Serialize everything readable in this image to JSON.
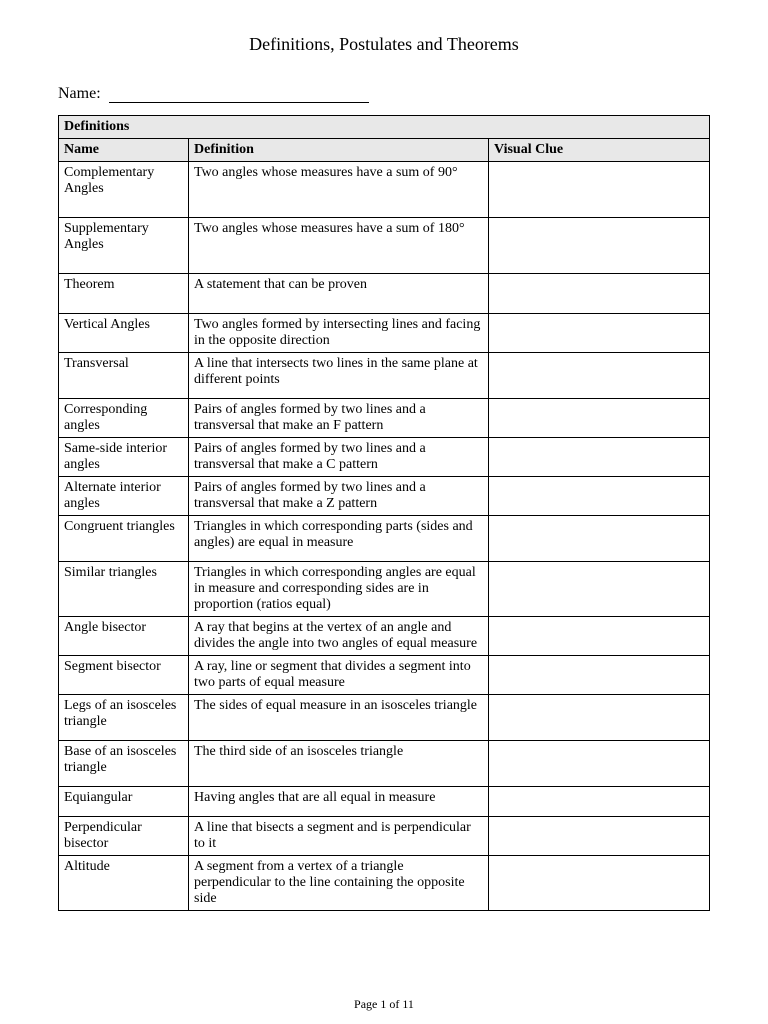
{
  "title": "Definitions, Postulates and Theorems",
  "name_label": "Name:",
  "section_header": "Definitions",
  "columns": {
    "name": "Name",
    "definition": "Definition",
    "visual": "Visual Clue"
  },
  "rows": [
    {
      "name": "Complementary Angles",
      "def": "Two angles whose measures have a sum of 90°",
      "h": "tall"
    },
    {
      "name": "Supplementary Angles",
      "def": "Two angles whose measures have a sum of 180°",
      "h": "tall"
    },
    {
      "name": "Theorem",
      "def": "A statement that can be proven",
      "h": "tall"
    },
    {
      "name": "Vertical Angles",
      "def": "Two angles formed by intersecting lines and facing in the opposite direction",
      "h": ""
    },
    {
      "name": "Transversal",
      "def": "A line that intersects two lines in the same plane at different points",
      "h": "med"
    },
    {
      "name": "Corresponding angles",
      "def": "Pairs of angles formed by two lines and a transversal that make an F pattern",
      "h": ""
    },
    {
      "name": "Same-side interior angles",
      "def": "Pairs of angles formed by two lines and a transversal that make a C pattern",
      "h": ""
    },
    {
      "name": "Alternate interior angles",
      "def": "Pairs of angles formed by two lines and a transversal that make a Z pattern",
      "h": ""
    },
    {
      "name": "Congruent triangles",
      "def": "Triangles in which corresponding parts (sides and angles) are equal in measure",
      "h": "med"
    },
    {
      "name": "Similar triangles",
      "def": "Triangles in which corresponding angles are equal in measure and corresponding sides are in proportion (ratios equal)",
      "h": ""
    },
    {
      "name": "Angle bisector",
      "def": "A ray that begins at the vertex of an angle and divides the angle into two angles of equal measure",
      "h": ""
    },
    {
      "name": "Segment bisector",
      "def": "A ray, line or segment that divides a segment into two parts of equal measure",
      "h": ""
    },
    {
      "name": "Legs of an isosceles triangle",
      "def": "The sides of equal measure in an isosceles triangle",
      "h": "med"
    },
    {
      "name": "Base of an isosceles triangle",
      "def": "The third side of an isosceles triangle",
      "h": "med"
    },
    {
      "name": "Equiangular",
      "def": "Having angles that are all equal in measure",
      "h": "med"
    },
    {
      "name": "Perpendicular bisector",
      "def": "A line that bisects a segment and is perpendicular to it",
      "h": ""
    },
    {
      "name": "Altitude",
      "def": "A segment from a vertex of a triangle perpendicular to the line containing the opposite side",
      "h": ""
    }
  ],
  "page_number": "Page 1 of 11"
}
